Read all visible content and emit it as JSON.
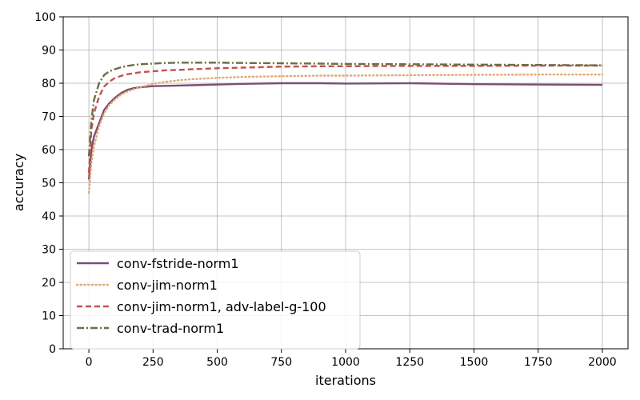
{
  "chart_data": {
    "type": "line",
    "title": "",
    "xlabel": "iterations",
    "ylabel": "accuracy",
    "xlim": [
      -100,
      2100
    ],
    "ylim": [
      0,
      100
    ],
    "xticks": [
      0,
      250,
      500,
      750,
      1000,
      1250,
      1500,
      1750,
      2000
    ],
    "yticks": [
      0,
      10,
      20,
      30,
      40,
      50,
      60,
      70,
      80,
      90,
      100
    ],
    "grid": true,
    "legend_position": "lower-left",
    "series": [
      {
        "name": "conv-fstride-norm1",
        "color": "#7b4f73",
        "style": "solid",
        "x": [
          0,
          10,
          20,
          40,
          60,
          80,
          100,
          125,
          150,
          175,
          200,
          250,
          300,
          350,
          400,
          500,
          600,
          750,
          900,
          1000,
          1250,
          1500,
          1750,
          2000
        ],
        "y": [
          51,
          60,
          64,
          68,
          72,
          74,
          75.5,
          77,
          78,
          78.5,
          78.8,
          79.1,
          79.2,
          79.3,
          79.4,
          79.6,
          79.8,
          80,
          80,
          79.9,
          80,
          79.7,
          79.6,
          79.5
        ]
      },
      {
        "name": "conv-jim-norm1",
        "color": "#e0a872",
        "style": "dotted",
        "x": [
          0,
          10,
          20,
          40,
          60,
          80,
          100,
          125,
          150,
          175,
          200,
          250,
          300,
          350,
          400,
          500,
          600,
          750,
          900,
          1000,
          1250,
          1500,
          1750,
          2000
        ],
        "y": [
          47,
          56,
          61,
          67,
          71,
          73.5,
          75,
          76.5,
          77.5,
          78.2,
          78.8,
          79.8,
          80.4,
          80.9,
          81.2,
          81.6,
          81.9,
          82.1,
          82.3,
          82.3,
          82.4,
          82.5,
          82.6,
          82.6
        ]
      },
      {
        "name": "conv-jim-norm1, adv-label-g-100",
        "color": "#c0544c",
        "style": "dashed",
        "x": [
          0,
          10,
          20,
          40,
          60,
          80,
          100,
          125,
          150,
          175,
          200,
          250,
          300,
          350,
          400,
          500,
          600,
          750,
          900,
          1000,
          1250,
          1500,
          1750,
          2000
        ],
        "y": [
          53,
          66,
          71,
          76,
          79,
          80.5,
          81.5,
          82.2,
          82.7,
          83,
          83.3,
          83.6,
          83.9,
          84,
          84.2,
          84.5,
          84.7,
          85,
          85.1,
          85.1,
          85.2,
          85.2,
          85.3,
          85.3
        ]
      },
      {
        "name": "conv-trad-norm1",
        "color": "#6b6e45",
        "style": "dashdot",
        "x": [
          0,
          10,
          20,
          40,
          60,
          80,
          100,
          125,
          150,
          175,
          200,
          250,
          300,
          350,
          400,
          500,
          600,
          750,
          900,
          1000,
          1250,
          1500,
          1750,
          2000
        ],
        "y": [
          58,
          69,
          75,
          80,
          82.5,
          83.6,
          84.2,
          84.8,
          85.2,
          85.5,
          85.7,
          85.9,
          86.1,
          86.2,
          86.2,
          86.2,
          86.1,
          86,
          85.9,
          85.8,
          85.7,
          85.6,
          85.5,
          85.4
        ]
      }
    ]
  }
}
